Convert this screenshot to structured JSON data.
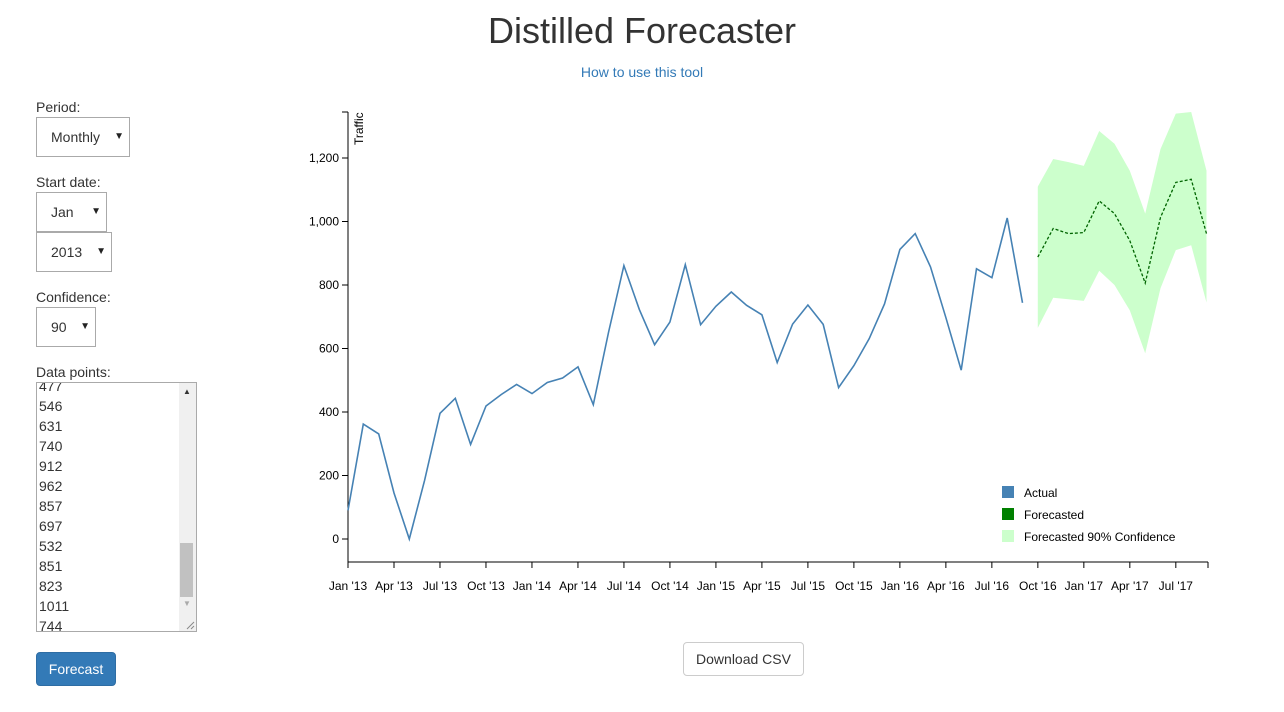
{
  "header": {
    "title": "Distilled Forecaster",
    "help_link": "How to use this tool"
  },
  "controls": {
    "period_label": "Period:",
    "period_value": "Monthly",
    "start_label": "Start date:",
    "start_month": "Jan",
    "start_year": "2013",
    "confidence_label": "Confidence:",
    "confidence_value": "90",
    "datapoints_label": "Data points:",
    "datapoints_partial": "477",
    "datapoints_visible": [
      "546",
      "631",
      "740",
      "912",
      "962",
      "857",
      "697",
      "532",
      "851",
      "823",
      "1011",
      "744"
    ],
    "forecast_button": "Forecast"
  },
  "download_button": "Download CSV",
  "colors": {
    "actual": "#4682b4",
    "forecast": "#008000",
    "confidence": "#ccffcc",
    "button_primary": "#337ab7",
    "link": "#337ab7"
  },
  "chart_data": {
    "type": "line",
    "ylabel": "Traffic",
    "xlabel": "",
    "ylim": [
      -70,
      1350
    ],
    "y_ticks": [
      0,
      200,
      400,
      600,
      800,
      1000,
      1200
    ],
    "y_tick_labels": [
      "0",
      "200",
      "400",
      "600",
      "800",
      "1,000",
      "1,200"
    ],
    "x_tick_labels": [
      "Jan '13",
      "Apr '13",
      "Jul '13",
      "Oct '13",
      "Jan '14",
      "Apr '14",
      "Jul '14",
      "Oct '14",
      "Jan '15",
      "Apr '15",
      "Jul '15",
      "Oct '15",
      "Jan '16",
      "Apr '16",
      "Jul '16",
      "Oct '16",
      "Jan '17",
      "Apr '17",
      "Jul '17"
    ],
    "legend": [
      "Actual",
      "Forecasted",
      "Forecasted 90% Confidence"
    ],
    "legend_position": "bottom-right",
    "grid": false,
    "series": [
      {
        "name": "Actual",
        "start": "2013-01",
        "values": [
          90,
          362,
          331,
          145,
          0,
          185,
          396,
          443,
          298,
          419,
          455,
          487,
          458,
          493,
          507,
          542,
          423,
          652,
          861,
          723,
          612,
          683,
          864,
          675,
          733,
          778,
          736,
          706,
          556,
          677,
          737,
          676,
          477,
          546,
          631,
          740,
          912,
          962,
          857,
          697,
          532,
          851,
          823,
          1011,
          744
        ]
      },
      {
        "name": "Forecasted",
        "start": "2016-10",
        "values": [
          888,
          978,
          962,
          965,
          1065,
          1025,
          940,
          806,
          1013,
          1123,
          1133,
          962
        ],
        "lower": [
          665,
          760,
          755,
          750,
          845,
          800,
          720,
          585,
          790,
          910,
          925,
          745
        ],
        "upper": [
          1110,
          1197,
          1187,
          1175,
          1285,
          1245,
          1160,
          1025,
          1228,
          1340,
          1345,
          1160
        ]
      }
    ]
  }
}
